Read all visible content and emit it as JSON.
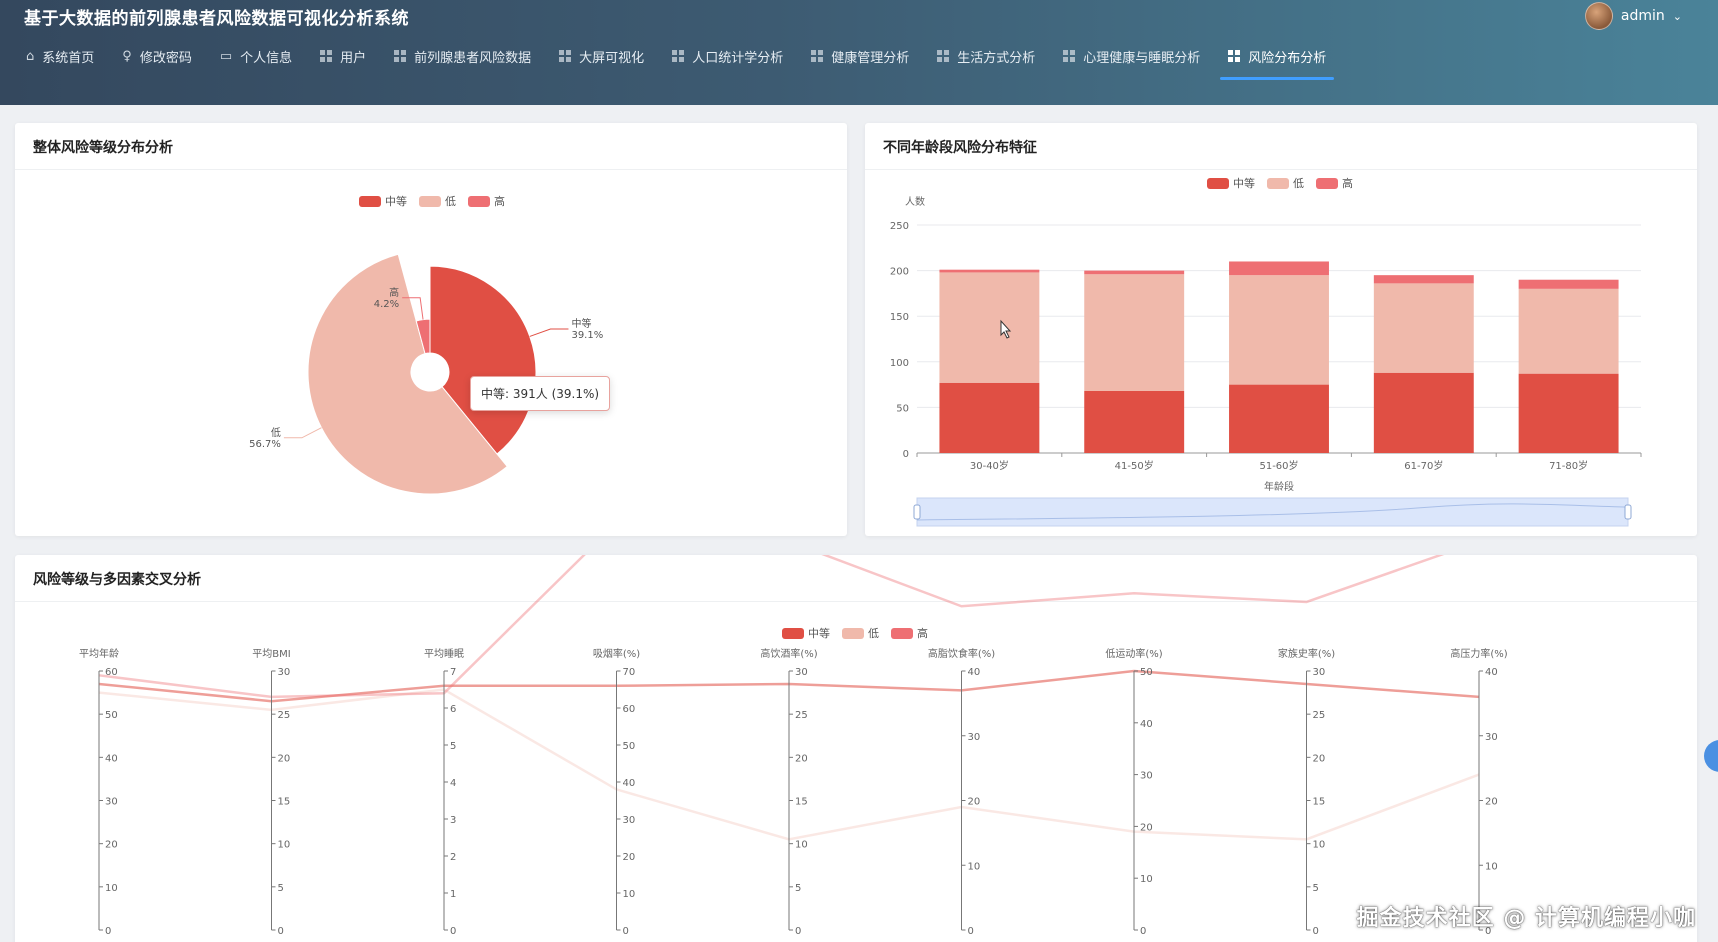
{
  "app": {
    "title": "基于大数据的前列腺患者风险数据可视化分析系统",
    "user": "admin"
  },
  "nav": [
    {
      "label": "系统首页",
      "icon": "home-icon",
      "active": false
    },
    {
      "label": "修改密码",
      "icon": "lock-icon",
      "active": false
    },
    {
      "label": "个人信息",
      "icon": "id-card-icon",
      "active": false
    },
    {
      "label": "用户",
      "icon": "grid-icon",
      "active": false
    },
    {
      "label": "前列腺患者风险数据",
      "icon": "grid-icon",
      "active": false
    },
    {
      "label": "大屏可视化",
      "icon": "grid-icon",
      "active": false
    },
    {
      "label": "人口统计学分析",
      "icon": "grid-icon",
      "active": false
    },
    {
      "label": "健康管理分析",
      "icon": "grid-icon",
      "active": false
    },
    {
      "label": "生活方式分析",
      "icon": "grid-icon",
      "active": false
    },
    {
      "label": "心理健康与睡眠分析",
      "icon": "grid-icon",
      "active": false
    },
    {
      "label": "风险分布分析",
      "icon": "grid-icon",
      "active": true
    }
  ],
  "colors": {
    "mid": "#e04f44",
    "low": "#f0b9ab",
    "high": "#ee6f73",
    "accent": "#409eff"
  },
  "cards": {
    "pie": {
      "title": "整体风险等级分布分析"
    },
    "age": {
      "title": "不同年龄段风险分布特征"
    },
    "multi": {
      "title": "风险等级与多因素交叉分析"
    }
  },
  "legend": [
    {
      "name": "中等",
      "color": "#e04f44"
    },
    {
      "name": "低",
      "color": "#f0b9ab"
    },
    {
      "name": "高",
      "color": "#ee6f73"
    }
  ],
  "tooltip": {
    "text": "中等: 391人 (39.1%)"
  },
  "watermark": "掘金技术社区 @ 计算机编程小咖",
  "chart_data": [
    {
      "type": "pie",
      "subtype": "rose",
      "title": "整体风险等级分布分析",
      "slices": [
        {
          "name": "中等",
          "value": 391,
          "percent_label": "39.1%"
        },
        {
          "name": "低",
          "value": 567,
          "percent_label": "56.7%"
        },
        {
          "name": "高",
          "value": 42,
          "percent_label": "4.2%"
        }
      ]
    },
    {
      "type": "bar",
      "stacked": true,
      "title": "不同年龄段风险分布特征",
      "xlabel": "年龄段",
      "ylabel": "人数",
      "ylim": [
        0,
        250
      ],
      "yticks": [
        0,
        50,
        100,
        150,
        200,
        250
      ],
      "categories": [
        "30-40岁",
        "41-50岁",
        "51-60岁",
        "61-70岁",
        "71-80岁"
      ],
      "series": [
        {
          "name": "中等",
          "values": [
            77,
            68,
            75,
            88,
            87
          ]
        },
        {
          "name": "低",
          "values": [
            121,
            128,
            120,
            98,
            93
          ]
        },
        {
          "name": "高",
          "values": [
            3,
            4,
            15,
            9,
            10
          ]
        }
      ],
      "datazoom": true
    },
    {
      "type": "parallel",
      "title": "风险等级与多因素交叉分析",
      "axes": [
        {
          "name": "平均年龄",
          "max": 60,
          "ticks": [
            0,
            10,
            20,
            30,
            40,
            50,
            60
          ]
        },
        {
          "name": "平均BMI",
          "max": 30,
          "ticks": [
            0,
            5,
            10,
            15,
            20,
            25,
            30
          ]
        },
        {
          "name": "平均睡眠",
          "max": 7,
          "ticks": [
            0,
            1,
            2,
            3,
            4,
            5,
            6,
            7
          ]
        },
        {
          "name": "吸烟率(%)",
          "max": 70,
          "ticks": [
            0,
            10,
            20,
            30,
            40,
            50,
            60,
            70
          ]
        },
        {
          "name": "高饮酒率(%)",
          "max": 30,
          "ticks": [
            0,
            5,
            10,
            15,
            20,
            25,
            30
          ]
        },
        {
          "name": "高脂饮食率(%)",
          "max": 40,
          "ticks": [
            0,
            10,
            20,
            30,
            40
          ]
        },
        {
          "name": "低运动率(%)",
          "max": 50,
          "ticks": [
            0,
            10,
            20,
            30,
            40,
            50
          ]
        },
        {
          "name": "家族史率(%)",
          "max": 30,
          "ticks": [
            0,
            5,
            10,
            15,
            20,
            25,
            30
          ]
        },
        {
          "name": "高压力率(%)",
          "max": 40,
          "ticks": [
            0,
            10,
            20,
            30,
            40
          ]
        }
      ],
      "series": [
        {
          "name": "中等",
          "values": [
            57,
            26.5,
            6.6,
            66,
            28.5,
            37,
            50,
            28.5,
            36
          ]
        },
        {
          "name": "低",
          "values": [
            55,
            25.5,
            6.5,
            38,
            10.5,
            19,
            19,
            10.5,
            24
          ]
        },
        {
          "name": "高",
          "values": [
            59,
            27,
            6.4,
            110,
            45,
            50,
            65,
            38,
            60
          ]
        }
      ]
    }
  ]
}
